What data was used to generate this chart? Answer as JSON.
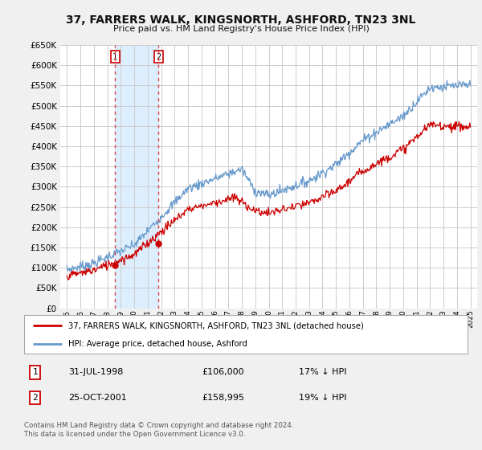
{
  "title": "37, FARRERS WALK, KINGSNORTH, ASHFORD, TN23 3NL",
  "subtitle": "Price paid vs. HM Land Registry's House Price Index (HPI)",
  "legend_line1": "37, FARRERS WALK, KINGSNORTH, ASHFORD, TN23 3NL (detached house)",
  "legend_line2": "HPI: Average price, detached house, Ashford",
  "table_row1": [
    "1",
    "31-JUL-1998",
    "£106,000",
    "17% ↓ HPI"
  ],
  "table_row2": [
    "2",
    "25-OCT-2001",
    "£158,995",
    "19% ↓ HPI"
  ],
  "footnote": "Contains HM Land Registry data © Crown copyright and database right 2024.\nThis data is licensed under the Open Government Licence v3.0.",
  "purchase1_year": 1998.58,
  "purchase1_price": 106000,
  "purchase2_year": 2001.81,
  "purchase2_price": 158995,
  "ylim": [
    0,
    650000
  ],
  "yticks": [
    0,
    50000,
    100000,
    150000,
    200000,
    250000,
    300000,
    350000,
    400000,
    450000,
    500000,
    550000,
    600000,
    650000
  ],
  "xlim_start": 1994.5,
  "xlim_end": 2025.5,
  "bg_color": "#f0f0f0",
  "plot_bg": "#ffffff",
  "red_color": "#cc0000",
  "blue_color": "#6699cc",
  "vline_color": "#dd4444",
  "shade_color": "#ddeeff",
  "grid_color": "#cccccc"
}
